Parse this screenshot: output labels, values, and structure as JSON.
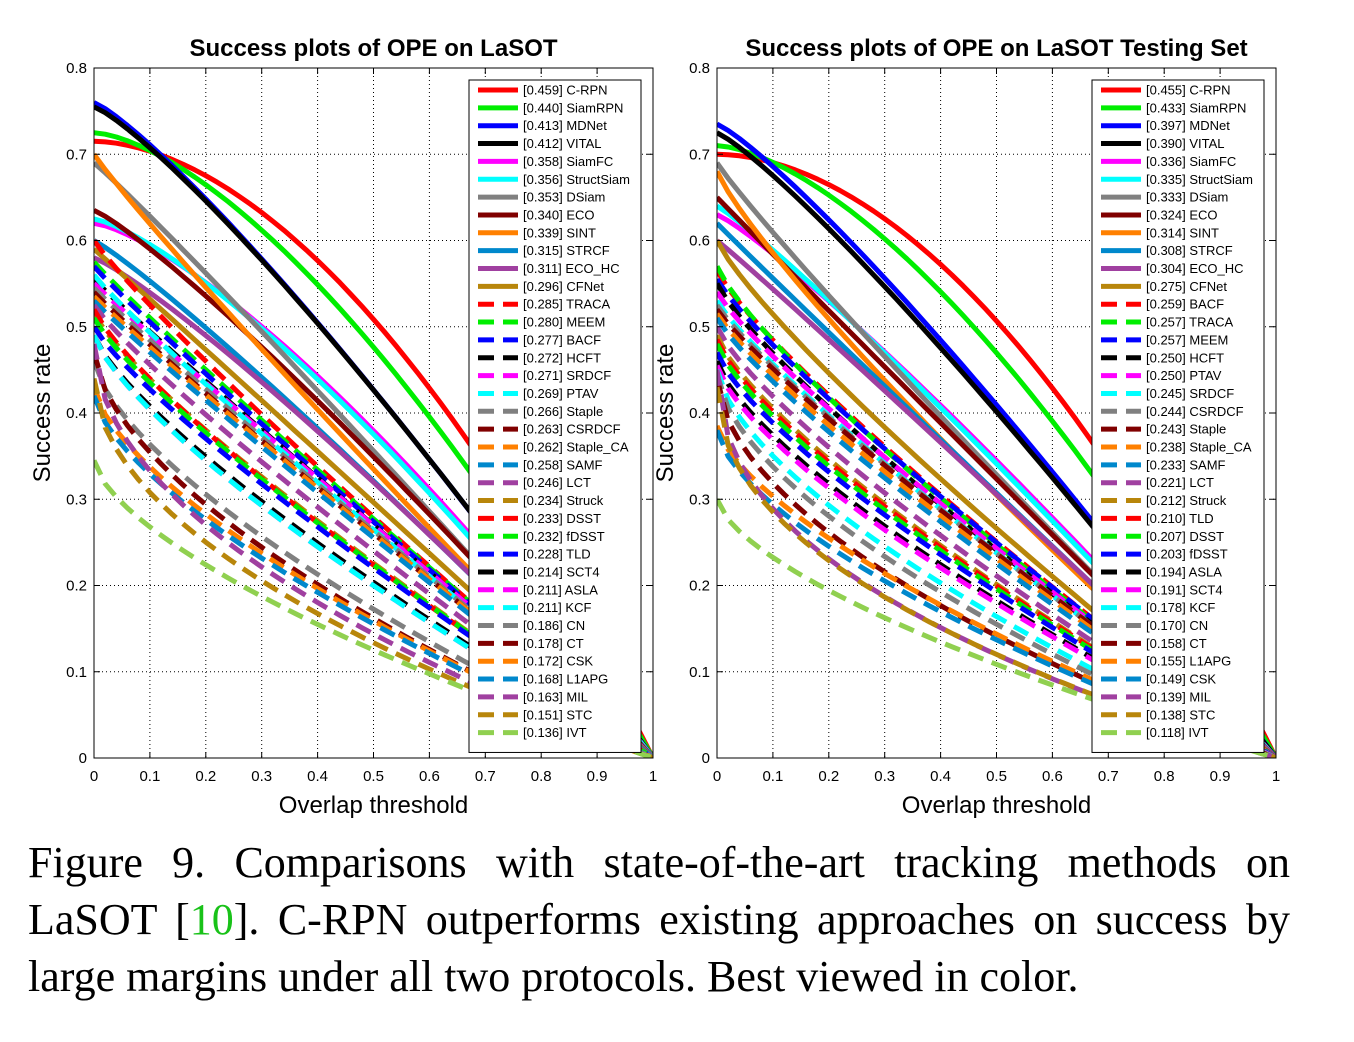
{
  "figure": {
    "caption_prefix": "Figure 9. Comparisons with state-of-the-art tracking methods on LaSOT [",
    "caption_ref": "10",
    "caption_suffix": "]. C-RPN outperforms existing approaches on success by large margins under all two protocols. Best viewed in color."
  },
  "chart_data": [
    {
      "type": "line",
      "title": "Success plots of OPE on LaSOT",
      "xlabel": "Overlap threshold",
      "ylabel": "Success rate",
      "xlim": [
        0,
        1
      ],
      "ylim": [
        0,
        0.8
      ],
      "xticks": [
        "0",
        "0.1",
        "0.2",
        "0.3",
        "0.4",
        "0.5",
        "0.6",
        "0.7",
        "0.8",
        "0.9",
        "1"
      ],
      "yticks": [
        "0",
        "0.1",
        "0.2",
        "0.3",
        "0.4",
        "0.5",
        "0.6",
        "0.7",
        "0.8"
      ],
      "grid": true,
      "legend_position": "top-right",
      "series": [
        {
          "name": "[0.459] C-RPN",
          "color": "#ff0000",
          "dash": false,
          "start": 0.715,
          "auc": 0.459
        },
        {
          "name": "[0.440] SiamRPN",
          "color": "#00ee00",
          "dash": false,
          "start": 0.725,
          "auc": 0.44
        },
        {
          "name": "[0.413] MDNet",
          "color": "#0000ff",
          "dash": false,
          "start": 0.76,
          "auc": 0.413
        },
        {
          "name": "[0.412] VITAL",
          "color": "#000000",
          "dash": false,
          "start": 0.755,
          "auc": 0.412
        },
        {
          "name": "[0.358] SiamFC",
          "color": "#ff00ff",
          "dash": false,
          "start": 0.62,
          "auc": 0.358
        },
        {
          "name": "[0.356] StructSiam",
          "color": "#00ffff",
          "dash": false,
          "start": 0.625,
          "auc": 0.356
        },
        {
          "name": "[0.353] DSiam",
          "color": "#808080",
          "dash": false,
          "start": 0.69,
          "auc": 0.353
        },
        {
          "name": "[0.340] ECO",
          "color": "#800000",
          "dash": false,
          "start": 0.635,
          "auc": 0.34
        },
        {
          "name": "[0.339] SINT",
          "color": "#ff8000",
          "dash": false,
          "start": 0.7,
          "auc": 0.339
        },
        {
          "name": "[0.315] STRCF",
          "color": "#0088cc",
          "dash": false,
          "start": 0.6,
          "auc": 0.315
        },
        {
          "name": "[0.311] ECO_HC",
          "color": "#a040a0",
          "dash": false,
          "start": 0.58,
          "auc": 0.311
        },
        {
          "name": "[0.296] CFNet",
          "color": "#b8860b",
          "dash": false,
          "start": 0.59,
          "auc": 0.296
        },
        {
          "name": "[0.285] TRACA",
          "color": "#ff0000",
          "dash": true,
          "start": 0.6,
          "auc": 0.285
        },
        {
          "name": "[0.280] MEEM",
          "color": "#00ee00",
          "dash": true,
          "start": 0.575,
          "auc": 0.28
        },
        {
          "name": "[0.277] BACF",
          "color": "#0000ff",
          "dash": true,
          "start": 0.57,
          "auc": 0.277
        },
        {
          "name": "[0.272] HCFT",
          "color": "#000000",
          "dash": true,
          "start": 0.555,
          "auc": 0.272
        },
        {
          "name": "[0.271] SRDCF",
          "color": "#ff00ff",
          "dash": true,
          "start": 0.55,
          "auc": 0.271
        },
        {
          "name": "[0.269] PTAV",
          "color": "#00ffff",
          "dash": true,
          "start": 0.56,
          "auc": 0.269
        },
        {
          "name": "[0.266] Staple",
          "color": "#808080",
          "dash": true,
          "start": 0.545,
          "auc": 0.266
        },
        {
          "name": "[0.263] CSRDCF",
          "color": "#800000",
          "dash": true,
          "start": 0.54,
          "auc": 0.263
        },
        {
          "name": "[0.262] Staple_CA",
          "color": "#ff8000",
          "dash": true,
          "start": 0.535,
          "auc": 0.262
        },
        {
          "name": "[0.258] SAMF",
          "color": "#0088cc",
          "dash": true,
          "start": 0.53,
          "auc": 0.258
        },
        {
          "name": "[0.246] LCT",
          "color": "#a040a0",
          "dash": true,
          "start": 0.525,
          "auc": 0.246
        },
        {
          "name": "[0.234] Struck",
          "color": "#b8860b",
          "dash": true,
          "start": 0.515,
          "auc": 0.234
        },
        {
          "name": "[0.233] DSST",
          "color": "#ff0000",
          "dash": true,
          "start": 0.52,
          "auc": 0.233
        },
        {
          "name": "[0.232] fDSST",
          "color": "#00ee00",
          "dash": true,
          "start": 0.51,
          "auc": 0.232
        },
        {
          "name": "[0.228] TLD",
          "color": "#0000ff",
          "dash": true,
          "start": 0.5,
          "auc": 0.228
        },
        {
          "name": "[0.214] SCT4",
          "color": "#000000",
          "dash": true,
          "start": 0.49,
          "auc": 0.214
        },
        {
          "name": "[0.211] ASLA",
          "color": "#ff00ff",
          "dash": true,
          "start": 0.49,
          "auc": 0.211
        },
        {
          "name": "[0.211] KCF",
          "color": "#00ffff",
          "dash": true,
          "start": 0.49,
          "auc": 0.211
        },
        {
          "name": "[0.186] CN",
          "color": "#808080",
          "dash": true,
          "start": 0.46,
          "auc": 0.186
        },
        {
          "name": "[0.178] CT",
          "color": "#800000",
          "dash": true,
          "start": 0.47,
          "auc": 0.178
        },
        {
          "name": "[0.172] CSK",
          "color": "#ff8000",
          "dash": true,
          "start": 0.43,
          "auc": 0.172
        },
        {
          "name": "[0.168] L1APG",
          "color": "#0088cc",
          "dash": true,
          "start": 0.42,
          "auc": 0.168
        },
        {
          "name": "[0.163] MIL",
          "color": "#a040a0",
          "dash": true,
          "start": 0.48,
          "auc": 0.163
        },
        {
          "name": "[0.151] STC",
          "color": "#b8860b",
          "dash": true,
          "start": 0.44,
          "auc": 0.151
        },
        {
          "name": "[0.136] IVT",
          "color": "#90d050",
          "dash": true,
          "start": 0.345,
          "auc": 0.136
        }
      ]
    },
    {
      "type": "line",
      "title": "Success plots of OPE on LaSOT Testing Set",
      "xlabel": "Overlap threshold",
      "ylabel": "Success rate",
      "xlim": [
        0,
        1
      ],
      "ylim": [
        0,
        0.8
      ],
      "xticks": [
        "0",
        "0.1",
        "0.2",
        "0.3",
        "0.4",
        "0.5",
        "0.6",
        "0.7",
        "0.8",
        "0.9",
        "1"
      ],
      "yticks": [
        "0",
        "0.1",
        "0.2",
        "0.3",
        "0.4",
        "0.5",
        "0.6",
        "0.7",
        "0.8"
      ],
      "grid": true,
      "legend_position": "top-right",
      "series": [
        {
          "name": "[0.455] C-RPN",
          "color": "#ff0000",
          "dash": false,
          "start": 0.7,
          "auc": 0.455
        },
        {
          "name": "[0.433] SiamRPN",
          "color": "#00ee00",
          "dash": false,
          "start": 0.71,
          "auc": 0.433
        },
        {
          "name": "[0.397] MDNet",
          "color": "#0000ff",
          "dash": false,
          "start": 0.735,
          "auc": 0.397
        },
        {
          "name": "[0.390] VITAL",
          "color": "#000000",
          "dash": false,
          "start": 0.725,
          "auc": 0.39
        },
        {
          "name": "[0.336] SiamFC",
          "color": "#ff00ff",
          "dash": false,
          "start": 0.63,
          "auc": 0.336
        },
        {
          "name": "[0.335] StructSiam",
          "color": "#00ffff",
          "dash": false,
          "start": 0.64,
          "auc": 0.335
        },
        {
          "name": "[0.333] DSiam",
          "color": "#808080",
          "dash": false,
          "start": 0.69,
          "auc": 0.333
        },
        {
          "name": "[0.324] ECO",
          "color": "#800000",
          "dash": false,
          "start": 0.65,
          "auc": 0.324
        },
        {
          "name": "[0.314] SINT",
          "color": "#ff8000",
          "dash": false,
          "start": 0.68,
          "auc": 0.314
        },
        {
          "name": "[0.308] STRCF",
          "color": "#0088cc",
          "dash": false,
          "start": 0.62,
          "auc": 0.308
        },
        {
          "name": "[0.304] ECO_HC",
          "color": "#a040a0",
          "dash": false,
          "start": 0.6,
          "auc": 0.304
        },
        {
          "name": "[0.275] CFNet",
          "color": "#b8860b",
          "dash": false,
          "start": 0.6,
          "auc": 0.275
        },
        {
          "name": "[0.259] BACF",
          "color": "#ff0000",
          "dash": true,
          "start": 0.565,
          "auc": 0.259
        },
        {
          "name": "[0.257] TRACA",
          "color": "#00ee00",
          "dash": true,
          "start": 0.57,
          "auc": 0.257
        },
        {
          "name": "[0.257] MEEM",
          "color": "#0000ff",
          "dash": true,
          "start": 0.555,
          "auc": 0.257
        },
        {
          "name": "[0.250] HCFT",
          "color": "#000000",
          "dash": true,
          "start": 0.55,
          "auc": 0.25
        },
        {
          "name": "[0.250] PTAV",
          "color": "#ff00ff",
          "dash": true,
          "start": 0.54,
          "auc": 0.25
        },
        {
          "name": "[0.245] SRDCF",
          "color": "#00ffff",
          "dash": true,
          "start": 0.53,
          "auc": 0.245
        },
        {
          "name": "[0.244] CSRDCF",
          "color": "#808080",
          "dash": true,
          "start": 0.525,
          "auc": 0.244
        },
        {
          "name": "[0.243] Staple",
          "color": "#800000",
          "dash": true,
          "start": 0.52,
          "auc": 0.243
        },
        {
          "name": "[0.238] Staple_CA",
          "color": "#ff8000",
          "dash": true,
          "start": 0.515,
          "auc": 0.238
        },
        {
          "name": "[0.233] SAMF",
          "color": "#0088cc",
          "dash": true,
          "start": 0.51,
          "auc": 0.233
        },
        {
          "name": "[0.221] LCT",
          "color": "#a040a0",
          "dash": true,
          "start": 0.5,
          "auc": 0.221
        },
        {
          "name": "[0.212] Struck",
          "color": "#b8860b",
          "dash": true,
          "start": 0.49,
          "auc": 0.212
        },
        {
          "name": "[0.210] TLD",
          "color": "#ff0000",
          "dash": true,
          "start": 0.485,
          "auc": 0.21
        },
        {
          "name": "[0.207] DSST",
          "color": "#00ee00",
          "dash": true,
          "start": 0.48,
          "auc": 0.207
        },
        {
          "name": "[0.203] fDSST",
          "color": "#0000ff",
          "dash": true,
          "start": 0.47,
          "auc": 0.203
        },
        {
          "name": "[0.194] ASLA",
          "color": "#000000",
          "dash": true,
          "start": 0.46,
          "auc": 0.194
        },
        {
          "name": "[0.191] SCT4",
          "color": "#ff00ff",
          "dash": true,
          "start": 0.455,
          "auc": 0.191
        },
        {
          "name": "[0.178] KCF",
          "color": "#00ffff",
          "dash": true,
          "start": 0.45,
          "auc": 0.178
        },
        {
          "name": "[0.170] CN",
          "color": "#808080",
          "dash": true,
          "start": 0.445,
          "auc": 0.17
        },
        {
          "name": "[0.158] CT",
          "color": "#800000",
          "dash": true,
          "start": 0.44,
          "auc": 0.158
        },
        {
          "name": "[0.155] L1APG",
          "color": "#ff8000",
          "dash": true,
          "start": 0.385,
          "auc": 0.155
        },
        {
          "name": "[0.149] CSK",
          "color": "#0088cc",
          "dash": true,
          "start": 0.38,
          "auc": 0.149
        },
        {
          "name": "[0.139] MIL",
          "color": "#a040a0",
          "dash": true,
          "start": 0.45,
          "auc": 0.139
        },
        {
          "name": "[0.138] STC",
          "color": "#b8860b",
          "dash": true,
          "start": 0.43,
          "auc": 0.138
        },
        {
          "name": "[0.118] IVT",
          "color": "#90d050",
          "dash": true,
          "start": 0.3,
          "auc": 0.118
        }
      ]
    }
  ]
}
